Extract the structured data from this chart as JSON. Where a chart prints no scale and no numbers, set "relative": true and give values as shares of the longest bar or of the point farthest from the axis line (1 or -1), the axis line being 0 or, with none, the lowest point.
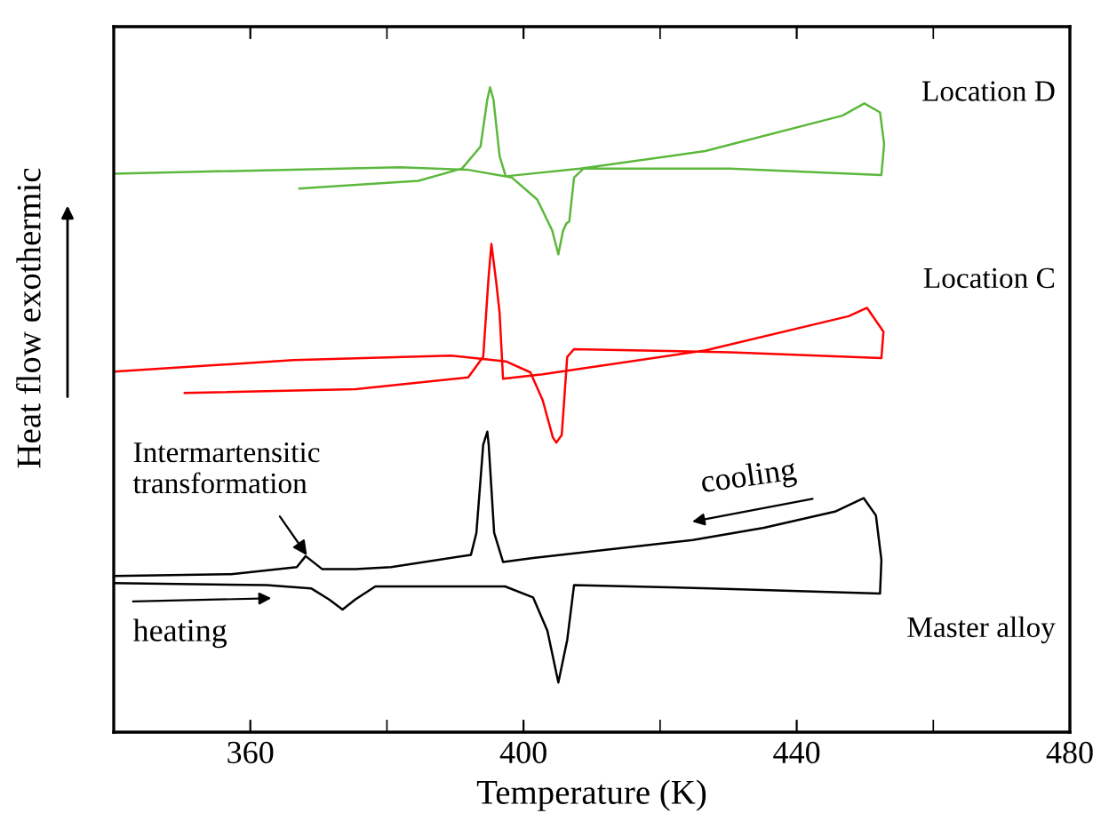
{
  "chart_data": {
    "type": "line",
    "relative": true,
    "xlabel": "Temperature (K)",
    "ylabel": "Heat flow exothermic",
    "xlim": [
      340,
      480
    ],
    "xticks": [
      360,
      {
        "value": 380,
        "label": null
      },
      400,
      {
        "value": 420,
        "label": null
      },
      440,
      {
        "value": 460,
        "label": null
      },
      480
    ],
    "grid": false,
    "legend": false,
    "marker": "none",
    "line_style": "solid",
    "annotations": [
      {
        "text": "Intermartensitic\ntransformation",
        "x": 368.5,
        "y": 0.271
      },
      "cooling",
      "heating"
    ],
    "series": [
      {
        "name": "Master alloy",
        "color": "#000000",
        "x": [
          340,
          362.4,
          368.9,
          371.5,
          373.5,
          375.4,
          378.3,
          397.3,
          401.4,
          403.5,
          405.1,
          406.4,
          407.4,
          427.4,
          452.2,
          452.4,
          451.6,
          449.8,
          445.6,
          435.2,
          424.8,
          401.4,
          397.0,
          395.7,
          394.9,
          394.7,
          394.1,
          393.1,
          392.3,
          380.6,
          375.4,
          370.5,
          368.1,
          366.8,
          357.2,
          340
        ],
        "values": [
          0.231,
          0.228,
          0.223,
          0.206,
          0.19,
          0.206,
          0.226,
          0.226,
          0.209,
          0.157,
          0.077,
          0.143,
          0.228,
          0.223,
          0.215,
          0.267,
          0.336,
          0.363,
          0.342,
          0.317,
          0.298,
          0.27,
          0.264,
          0.309,
          0.446,
          0.466,
          0.446,
          0.309,
          0.275,
          0.256,
          0.253,
          0.253,
          0.273,
          0.256,
          0.245,
          0.242
        ]
      },
      {
        "name": "Location C",
        "color": "#ff0000",
        "x": [
          340,
          366.3,
          389.2,
          397.4,
          401.0,
          402.8,
          404.3,
          404.8,
          405.6,
          406.4,
          407.4,
          430.3,
          452.4,
          452.7,
          450.3,
          447.6,
          426.7,
          402.8,
          397.0,
          396.5,
          396.0,
          395.3,
          394.9,
          394.1,
          391.9,
          375.4,
          350.4
        ],
        "values": [
          0.559,
          0.577,
          0.584,
          0.575,
          0.558,
          0.515,
          0.457,
          0.449,
          0.461,
          0.582,
          0.594,
          0.589,
          0.58,
          0.621,
          0.658,
          0.645,
          0.592,
          0.555,
          0.548,
          0.65,
          0.698,
          0.757,
          0.708,
          0.582,
          0.55,
          0.532,
          0.526
        ]
      },
      {
        "name": "Location D",
        "color": "#5cb83c",
        "x": [
          340,
          381.9,
          391.9,
          398.3,
          402.0,
          404.2,
          405.1,
          405.8,
          406.3,
          406.7,
          407.4,
          408.8,
          430.2,
          452.4,
          452.8,
          452.2,
          449.9,
          446.7,
          426.6,
          408.3,
          397.4,
          396.5,
          395.6,
          395.1,
          394.7,
          393.7,
          391.0,
          384.6,
          367.2
        ],
        "values": [
          0.866,
          0.876,
          0.872,
          0.86,
          0.826,
          0.778,
          0.741,
          0.778,
          0.789,
          0.792,
          0.86,
          0.874,
          0.874,
          0.864,
          0.912,
          0.961,
          0.975,
          0.956,
          0.901,
          0.874,
          0.862,
          0.893,
          0.981,
          1,
          0.981,
          0.908,
          0.874,
          0.855,
          0.843
        ]
      }
    ]
  }
}
